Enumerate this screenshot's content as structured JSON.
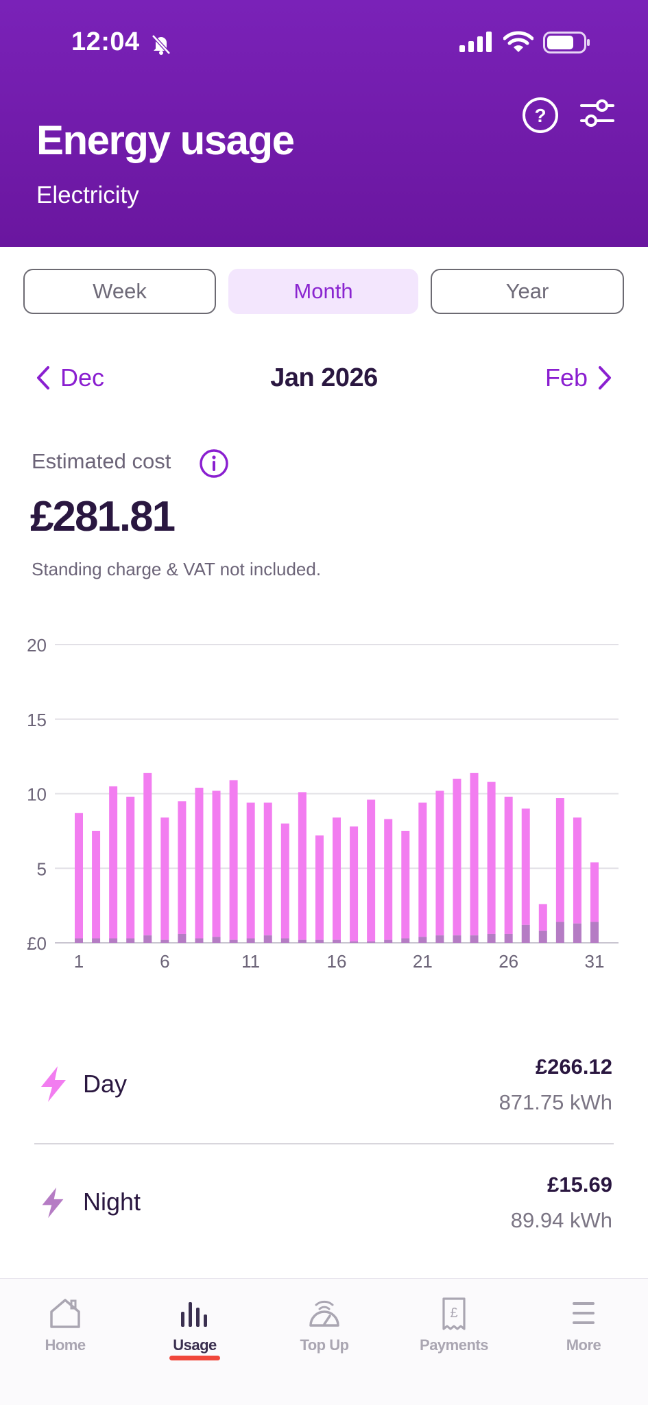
{
  "status_bar": {
    "time": "12:04",
    "icons": [
      "bell-slash-icon",
      "signal-icon",
      "wifi-icon",
      "battery-icon"
    ]
  },
  "header": {
    "title": "Energy usage",
    "subtitle": "Electricity",
    "icons": [
      "help-icon",
      "filter-icon"
    ]
  },
  "period_tabs": [
    {
      "label": "Week",
      "active": false
    },
    {
      "label": "Month",
      "active": true
    },
    {
      "label": "Year",
      "active": false
    }
  ],
  "period_nav": {
    "prev": "Dec",
    "current": "Jan 2026",
    "next": "Feb"
  },
  "summary": {
    "label": "Estimated cost",
    "amount": "£281.81",
    "note": "Standing charge & VAT not included."
  },
  "chart_data": {
    "type": "bar",
    "stacked": true,
    "x": [
      1,
      2,
      3,
      4,
      5,
      6,
      7,
      8,
      9,
      10,
      11,
      12,
      13,
      14,
      15,
      16,
      17,
      18,
      19,
      20,
      21,
      22,
      23,
      24,
      25,
      26,
      27,
      28,
      29,
      30,
      31
    ],
    "x_tick_labels": [
      "1",
      "6",
      "11",
      "16",
      "21",
      "26",
      "31"
    ],
    "y_tick_labels": [
      "£0",
      "5",
      "10",
      "15",
      "20"
    ],
    "ylim": [
      0,
      20
    ],
    "grid": true,
    "series": [
      {
        "name": "Night",
        "color": "#b57cc4",
        "values": [
          0.3,
          0.3,
          0.3,
          0.3,
          0.5,
          0.2,
          0.6,
          0.3,
          0.4,
          0.2,
          0.3,
          0.5,
          0.3,
          0.2,
          0.2,
          0.2,
          0.1,
          0.1,
          0.2,
          0.3,
          0.4,
          0.5,
          0.5,
          0.5,
          0.6,
          0.6,
          1.2,
          0.8,
          1.4,
          1.3,
          1.4
        ]
      },
      {
        "name": "Day",
        "color": "#f27df0",
        "values": [
          8.4,
          7.2,
          10.2,
          9.5,
          10.9,
          8.2,
          8.9,
          10.1,
          9.8,
          10.7,
          9.1,
          8.9,
          7.7,
          9.9,
          7.0,
          8.2,
          7.7,
          9.5,
          8.1,
          7.2,
          9.0,
          9.7,
          10.5,
          10.9,
          10.2,
          9.2,
          7.8,
          1.8,
          8.3,
          7.1,
          4.0
        ]
      }
    ]
  },
  "breakdown": [
    {
      "label": "Day",
      "cost": "£266.12",
      "kwh": "871.75 kWh",
      "icon": "lightning-icon",
      "color": "#f27df0"
    },
    {
      "label": "Night",
      "cost": "£15.69",
      "kwh": "89.94 kWh",
      "icon": "lightning-icon",
      "color": "#b57cc4"
    }
  ],
  "bottom_nav": [
    {
      "label": "Home",
      "icon": "home-icon",
      "active": false
    },
    {
      "label": "Usage",
      "icon": "usage-icon",
      "active": true
    },
    {
      "label": "Top Up",
      "icon": "top-up-icon",
      "active": false
    },
    {
      "label": "Payments",
      "icon": "payments-icon",
      "active": false
    },
    {
      "label": "More",
      "icon": "menu-icon",
      "active": false
    }
  ]
}
